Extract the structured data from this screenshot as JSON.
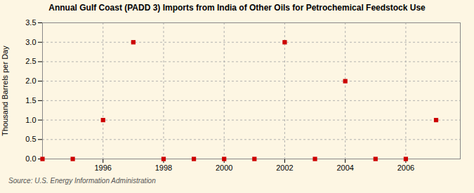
{
  "chart_data": {
    "type": "scatter",
    "title": "Annual Gulf Coast (PADD 3) Imports from India of Other Oils for Petrochemical Feedstock Use",
    "ylabel": "Thousand Barrels per Day",
    "source": "Source: U.S. Energy Information Administration",
    "x": [
      1994,
      1995,
      1996,
      1997,
      1998,
      1999,
      2000,
      2001,
      2002,
      2003,
      2004,
      2005,
      2006,
      2007
    ],
    "values": [
      0,
      0,
      1.0,
      3.0,
      0,
      0,
      0,
      0,
      3.0,
      0,
      2.0,
      0,
      0,
      1.0
    ],
    "color": "#cc0000",
    "marker": "square",
    "xlim": [
      1994.0,
      2007.8
    ],
    "xticks": [
      1996,
      1998,
      2000,
      2002,
      2004,
      2006
    ],
    "ylim": [
      0,
      3.5
    ],
    "yticks": [
      {
        "value": 0.0,
        "label": "0.0"
      },
      0.5,
      {
        "value": 1.0,
        "label": "1.0"
      },
      1.5,
      {
        "value": 2.0,
        "label": "2.0"
      },
      2.5,
      {
        "value": 3.0,
        "label": "3.0"
      },
      3.5
    ],
    "grid": true
  }
}
